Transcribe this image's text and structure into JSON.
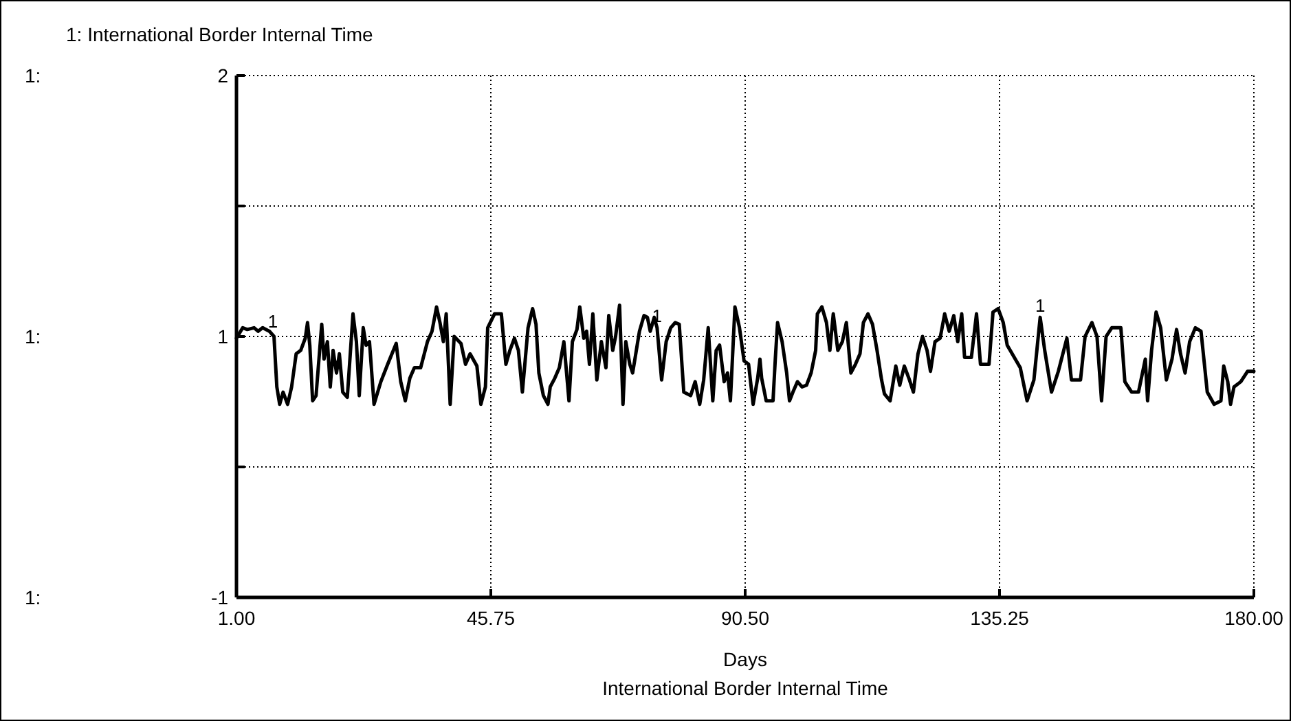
{
  "chart_data": {
    "type": "line",
    "title": "1: International Border Internal Time",
    "subtitle": "International Border Internal Time",
    "xlabel": "Days",
    "xlim": [
      1,
      180
    ],
    "xticks": [
      {
        "value": 1,
        "label": "1.00"
      },
      {
        "value": 45.75,
        "label": "45.75"
      },
      {
        "value": 90.5,
        "label": "90.50"
      },
      {
        "value": 135.25,
        "label": "135.25"
      },
      {
        "value": 180,
        "label": "180.00"
      }
    ],
    "ylim": [
      -1,
      2
    ],
    "yticks": [
      2,
      {
        "value": 1.25,
        "label": null
      },
      {
        "value": 0.5,
        "label": "1"
      },
      {
        "value": -0.25,
        "label": null
      },
      -1
    ],
    "grid": true,
    "line_style": "solid",
    "marker": "none",
    "annotations": [
      "1:",
      "1:",
      "1:",
      {
        "text": "1",
        "x": 7.4,
        "y": 0.52
      },
      {
        "text": "1",
        "x": 75.0,
        "y": 0.55
      },
      {
        "text": "1",
        "x": 142.4,
        "y": 0.61
      }
    ],
    "series": [
      {
        "color": "#000000",
        "x": [
          1.0,
          2.1,
          2.9,
          4.1,
          4.8,
          5.6,
          6.8,
          7.6,
          8.1,
          8.6,
          9.2,
          10.0,
          10.7,
          11.5,
          12.3,
          13.1,
          13.5,
          13.9,
          14.4,
          15.0,
          16.0,
          16.4,
          17.0,
          17.5,
          18.0,
          18.6,
          19.1,
          19.7,
          20.5,
          21.5,
          22.1,
          22.6,
          23.3,
          23.8,
          24.4,
          25.2,
          26.4,
          27.6,
          29.1,
          29.9,
          30.7,
          31.5,
          32.3,
          33.4,
          34.6,
          35.4,
          36.2,
          36.8,
          37.4,
          37.9,
          38.6,
          39.3,
          40.5,
          41.3,
          42.1,
          43.3,
          44.0,
          44.8,
          45.2,
          46.4,
          47.6,
          48.4,
          49.1,
          49.9,
          50.6,
          51.3,
          52.3,
          53.1,
          53.7,
          54.2,
          55.0,
          55.8,
          56.2,
          57.0,
          57.8,
          58.6,
          59.5,
          60.1,
          60.9,
          61.4,
          62.1,
          62.6,
          63.1,
          63.7,
          64.4,
          65.2,
          66.0,
          66.5,
          67.2,
          67.7,
          68.4,
          69.0,
          69.5,
          70.2,
          70.7,
          71.3,
          71.9,
          72.7,
          73.3,
          73.8,
          74.5,
          75.0,
          75.8,
          76.6,
          77.4,
          78.2,
          78.9,
          79.7,
          80.9,
          81.7,
          82.5,
          83.2,
          84.0,
          84.8,
          85.4,
          86.0,
          86.8,
          87.4,
          87.9,
          88.7,
          89.5,
          90.3,
          91.1,
          91.9,
          92.7,
          93.1,
          93.4,
          94.2,
          95.4,
          95.8,
          96.2,
          97.0,
          97.8,
          98.3,
          98.9,
          99.7,
          100.5,
          101.3,
          102.1,
          102.9,
          103.2,
          104.0,
          104.8,
          105.4,
          106.0,
          106.8,
          107.6,
          108.3,
          109.1,
          109.9,
          110.7,
          111.3,
          112.1,
          112.9,
          113.7,
          114.5,
          115.0,
          116.0,
          117.0,
          117.7,
          118.5,
          119.3,
          120.1,
          120.9,
          121.7,
          122.5,
          123.1,
          123.9,
          124.8,
          125.6,
          126.4,
          127.2,
          127.9,
          128.6,
          129.1,
          130.3,
          131.2,
          131.9,
          133.4,
          134.1,
          135.0,
          135.9,
          136.6,
          138.9,
          140.1,
          141.3,
          142.4,
          143.2,
          144.4,
          145.6,
          147.1,
          147.9,
          149.5,
          150.3,
          151.5,
          152.4,
          153.2,
          154.0,
          155.0,
          156.6,
          157.3,
          158.5,
          159.7,
          160.9,
          161.3,
          162.0,
          162.8,
          163.6,
          164.6,
          165.6,
          166.4,
          167.1,
          167.9,
          168.7,
          169.7,
          170.7,
          171.8,
          173.0,
          174.2,
          174.7,
          175.4,
          175.9,
          176.5,
          177.7,
          178.9,
          180.0
        ],
        "values": [
          0.49,
          0.55,
          0.54,
          0.55,
          0.53,
          0.55,
          0.53,
          0.5,
          0.21,
          0.11,
          0.18,
          0.11,
          0.21,
          0.4,
          0.42,
          0.49,
          0.58,
          0.45,
          0.13,
          0.16,
          0.57,
          0.37,
          0.47,
          0.21,
          0.42,
          0.29,
          0.4,
          0.18,
          0.15,
          0.63,
          0.47,
          0.16,
          0.55,
          0.45,
          0.47,
          0.11,
          0.24,
          0.34,
          0.46,
          0.24,
          0.13,
          0.26,
          0.32,
          0.32,
          0.47,
          0.53,
          0.67,
          0.58,
          0.47,
          0.63,
          0.11,
          0.5,
          0.46,
          0.34,
          0.4,
          0.33,
          0.11,
          0.21,
          0.55,
          0.63,
          0.63,
          0.34,
          0.42,
          0.49,
          0.42,
          0.18,
          0.55,
          0.66,
          0.57,
          0.29,
          0.16,
          0.11,
          0.21,
          0.26,
          0.32,
          0.47,
          0.13,
          0.47,
          0.54,
          0.67,
          0.49,
          0.53,
          0.34,
          0.63,
          0.25,
          0.47,
          0.32,
          0.62,
          0.42,
          0.5,
          0.68,
          0.11,
          0.47,
          0.34,
          0.29,
          0.41,
          0.53,
          0.62,
          0.61,
          0.53,
          0.61,
          0.55,
          0.25,
          0.47,
          0.55,
          0.58,
          0.57,
          0.18,
          0.16,
          0.24,
          0.11,
          0.25,
          0.55,
          0.13,
          0.42,
          0.45,
          0.24,
          0.29,
          0.13,
          0.67,
          0.55,
          0.36,
          0.34,
          0.11,
          0.26,
          0.37,
          0.26,
          0.13,
          0.13,
          0.37,
          0.58,
          0.47,
          0.29,
          0.13,
          0.18,
          0.24,
          0.21,
          0.22,
          0.29,
          0.42,
          0.63,
          0.67,
          0.58,
          0.42,
          0.63,
          0.42,
          0.47,
          0.58,
          0.29,
          0.34,
          0.4,
          0.58,
          0.63,
          0.57,
          0.42,
          0.25,
          0.17,
          0.13,
          0.33,
          0.22,
          0.33,
          0.26,
          0.18,
          0.4,
          0.5,
          0.42,
          0.3,
          0.47,
          0.49,
          0.63,
          0.53,
          0.62,
          0.47,
          0.63,
          0.38,
          0.38,
          0.63,
          0.34,
          0.34,
          0.64,
          0.66,
          0.58,
          0.45,
          0.32,
          0.13,
          0.25,
          0.61,
          0.42,
          0.18,
          0.3,
          0.49,
          0.25,
          0.25,
          0.5,
          0.58,
          0.5,
          0.13,
          0.5,
          0.55,
          0.55,
          0.24,
          0.18,
          0.18,
          0.37,
          0.13,
          0.42,
          0.64,
          0.55,
          0.25,
          0.37,
          0.54,
          0.4,
          0.29,
          0.47,
          0.55,
          0.53,
          0.18,
          0.11,
          0.13,
          0.33,
          0.24,
          0.11,
          0.21,
          0.24,
          0.3,
          0.3
        ]
      }
    ]
  }
}
